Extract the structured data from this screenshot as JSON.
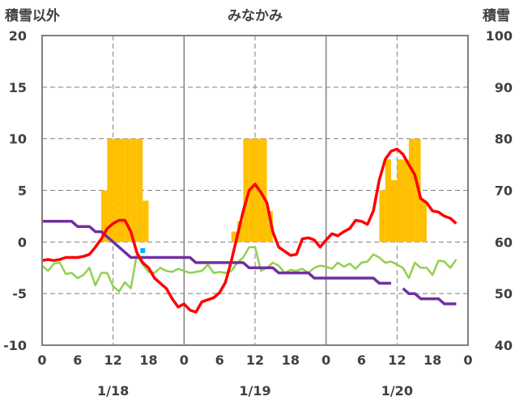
{
  "chart_data": {
    "type": "line",
    "title": "みなかみ",
    "ylabel_left": "積雪以外",
    "ylabel_right": "積雪",
    "ylim_left": [
      -10,
      20
    ],
    "ylim_right": [
      40,
      100
    ],
    "yticks_left": [
      "20",
      "15",
      "10",
      "5",
      "0",
      "-5",
      "-10"
    ],
    "yticks_right": [
      "100",
      "90",
      "80",
      "70",
      "60",
      "50",
      "40"
    ],
    "xticks": [
      "0",
      "6",
      "12",
      "18",
      "0",
      "6",
      "12",
      "18",
      "0",
      "6",
      "12",
      "18",
      "0"
    ],
    "day_labels": [
      "1/18",
      "1/19",
      "1/20"
    ],
    "grid": true,
    "colors": {
      "precip_bars": "#ffc000",
      "temperature": "#ff0000",
      "humidity_proxy": "#92d050",
      "snow_depth": "#7030a0",
      "marker": "#00b0f0"
    },
    "series": [
      {
        "axis": "left",
        "kind": "bar",
        "values": [
          [
            9,
            0
          ],
          [
            10,
            5
          ],
          [
            11,
            10
          ],
          [
            12,
            10
          ],
          [
            13,
            10
          ],
          [
            14,
            10
          ],
          [
            15,
            10
          ],
          [
            16,
            10
          ],
          [
            17,
            4
          ],
          [
            32,
            1
          ],
          [
            33,
            2
          ],
          [
            34,
            10
          ],
          [
            35,
            10
          ],
          [
            36,
            10
          ],
          [
            37,
            10
          ],
          [
            38,
            3
          ],
          [
            57,
            5
          ],
          [
            58,
            8
          ],
          [
            59,
            6
          ],
          [
            60,
            8
          ],
          [
            61,
            8
          ],
          [
            62,
            10
          ],
          [
            63,
            10
          ],
          [
            64,
            4
          ]
        ]
      },
      {
        "axis": "left",
        "kind": "line",
        "values": [
          [
            0,
            -1.8
          ],
          [
            1,
            -1.7
          ],
          [
            2,
            -1.8
          ],
          [
            3,
            -1.7
          ],
          [
            4,
            -1.5
          ],
          [
            5,
            -1.5
          ],
          [
            6,
            -1.5
          ],
          [
            7,
            -1.4
          ],
          [
            8,
            -1.2
          ],
          [
            9,
            -0.5
          ],
          [
            10,
            0.3
          ],
          [
            11,
            1.3
          ],
          [
            12,
            1.8
          ],
          [
            13,
            2.1
          ],
          [
            14,
            2.1
          ],
          [
            15,
            1.0
          ],
          [
            16,
            -1.0
          ],
          [
            17,
            -2.0
          ],
          [
            18,
            -2.5
          ],
          [
            19,
            -3.5
          ],
          [
            20,
            -4.0
          ],
          [
            21,
            -4.5
          ],
          [
            22,
            -5.5
          ],
          [
            23,
            -6.3
          ],
          [
            24,
            -6.0
          ],
          [
            25,
            -6.6
          ],
          [
            26,
            -6.8
          ],
          [
            27,
            -5.8
          ],
          [
            28,
            -5.6
          ],
          [
            29,
            -5.4
          ],
          [
            30,
            -4.9
          ],
          [
            31,
            -3.9
          ],
          [
            32,
            -1.8
          ],
          [
            33,
            0.6
          ],
          [
            34,
            3.0
          ],
          [
            35,
            5.0
          ],
          [
            36,
            5.6
          ],
          [
            37,
            4.8
          ],
          [
            38,
            3.8
          ],
          [
            39,
            1.0
          ],
          [
            40,
            -0.5
          ],
          [
            41,
            -0.9
          ],
          [
            42,
            -1.3
          ],
          [
            43,
            -1.2
          ],
          [
            44,
            0.3
          ],
          [
            45,
            0.4
          ],
          [
            46,
            0.2
          ],
          [
            47,
            -0.5
          ],
          [
            48,
            0.2
          ],
          [
            49,
            0.8
          ],
          [
            50,
            0.6
          ],
          [
            51,
            1.0
          ],
          [
            52,
            1.3
          ],
          [
            53,
            2.1
          ],
          [
            54,
            2.0
          ],
          [
            55,
            1.7
          ],
          [
            56,
            3.0
          ],
          [
            57,
            6.0
          ],
          [
            58,
            8.0
          ],
          [
            59,
            8.8
          ],
          [
            60,
            9.0
          ],
          [
            61,
            8.5
          ],
          [
            62,
            7.5
          ],
          [
            63,
            6.5
          ],
          [
            64,
            4.2
          ],
          [
            65,
            3.8
          ],
          [
            66,
            3.0
          ],
          [
            67,
            2.9
          ],
          [
            68,
            2.5
          ],
          [
            69,
            2.3
          ],
          [
            70,
            1.8
          ]
        ]
      },
      {
        "axis": "left",
        "kind": "line",
        "values": [
          [
            0,
            -2.3
          ],
          [
            1,
            -2.8
          ],
          [
            2,
            -2.1
          ],
          [
            3,
            -2.0
          ],
          [
            4,
            -3.1
          ],
          [
            5,
            -3.0
          ],
          [
            6,
            -3.5
          ],
          [
            7,
            -3.2
          ],
          [
            8,
            -2.5
          ],
          [
            9,
            -4.2
          ],
          [
            10,
            -3.0
          ],
          [
            11,
            -3.0
          ],
          [
            12,
            -4.3
          ],
          [
            13,
            -4.8
          ],
          [
            14,
            -3.9
          ],
          [
            15,
            -4.5
          ],
          [
            16,
            -1.2
          ],
          [
            17,
            -2.2
          ],
          [
            18,
            -2.9
          ],
          [
            19,
            -3.0
          ],
          [
            20,
            -2.5
          ],
          [
            21,
            -2.8
          ],
          [
            22,
            -2.9
          ],
          [
            23,
            -2.6
          ],
          [
            24,
            -2.8
          ],
          [
            25,
            -3.0
          ],
          [
            26,
            -2.9
          ],
          [
            27,
            -2.8
          ],
          [
            28,
            -2.2
          ],
          [
            29,
            -3.0
          ],
          [
            30,
            -2.9
          ],
          [
            31,
            -3.0
          ],
          [
            32,
            -2.8
          ],
          [
            33,
            -2.0
          ],
          [
            34,
            -1.5
          ],
          [
            35,
            -0.5
          ],
          [
            36,
            -0.5
          ],
          [
            37,
            -2.8
          ],
          [
            38,
            -2.5
          ],
          [
            39,
            -2.0
          ],
          [
            40,
            -2.3
          ],
          [
            41,
            -3.0
          ],
          [
            42,
            -2.7
          ],
          [
            43,
            -2.8
          ],
          [
            44,
            -2.6
          ],
          [
            45,
            -3.0
          ],
          [
            46,
            -2.5
          ],
          [
            47,
            -2.3
          ],
          [
            48,
            -2.4
          ],
          [
            49,
            -2.6
          ],
          [
            50,
            -2.0
          ],
          [
            51,
            -2.4
          ],
          [
            52,
            -2.1
          ],
          [
            53,
            -2.6
          ],
          [
            54,
            -2.0
          ],
          [
            55,
            -1.9
          ],
          [
            56,
            -1.2
          ],
          [
            57,
            -1.5
          ],
          [
            58,
            -2.0
          ],
          [
            59,
            -1.9
          ],
          [
            60,
            -2.2
          ],
          [
            61,
            -2.5
          ],
          [
            62,
            -3.5
          ],
          [
            63,
            -2.0
          ],
          [
            64,
            -2.5
          ],
          [
            65,
            -2.5
          ],
          [
            66,
            -3.2
          ],
          [
            67,
            -1.8
          ],
          [
            68,
            -1.9
          ],
          [
            69,
            -2.5
          ],
          [
            70,
            -1.7
          ]
        ]
      },
      {
        "axis": "right",
        "kind": "line",
        "values": [
          [
            0,
            64
          ],
          [
            1,
            64
          ],
          [
            2,
            64
          ],
          [
            3,
            64
          ],
          [
            4,
            64
          ],
          [
            5,
            64
          ],
          [
            6,
            63
          ],
          [
            7,
            63
          ],
          [
            8,
            63
          ],
          [
            9,
            62
          ],
          [
            10,
            62
          ],
          [
            11,
            61
          ],
          [
            12,
            60
          ],
          [
            13,
            59
          ],
          [
            14,
            58
          ],
          [
            15,
            57
          ],
          [
            16,
            57
          ],
          [
            17,
            57
          ],
          [
            18,
            57
          ],
          [
            19,
            57
          ],
          [
            20,
            57
          ],
          [
            21,
            57
          ],
          [
            22,
            57
          ],
          [
            23,
            57
          ],
          [
            24,
            57
          ],
          [
            25,
            57
          ],
          [
            26,
            56
          ],
          [
            27,
            56
          ],
          [
            28,
            56
          ],
          [
            29,
            56
          ],
          [
            30,
            56
          ],
          [
            31,
            56
          ],
          [
            32,
            56
          ],
          [
            33,
            56
          ],
          [
            34,
            56
          ],
          [
            35,
            55
          ],
          [
            36,
            55
          ],
          [
            37,
            55
          ],
          [
            38,
            55
          ],
          [
            39,
            55
          ],
          [
            40,
            54
          ],
          [
            41,
            54
          ],
          [
            42,
            54
          ],
          [
            43,
            54
          ],
          [
            44,
            54
          ],
          [
            45,
            54
          ],
          [
            46,
            53
          ],
          [
            47,
            53
          ],
          [
            48,
            53
          ],
          [
            49,
            53
          ],
          [
            50,
            53
          ],
          [
            51,
            53
          ],
          [
            52,
            53
          ],
          [
            53,
            53
          ],
          [
            54,
            53
          ],
          [
            55,
            53
          ],
          [
            56,
            53
          ],
          [
            57,
            52
          ],
          [
            58,
            52
          ],
          [
            59,
            52
          ],
          [
            60,
            null
          ],
          [
            61,
            51
          ],
          [
            62,
            50
          ],
          [
            63,
            50
          ],
          [
            64,
            49
          ],
          [
            65,
            49
          ],
          [
            66,
            49
          ],
          [
            67,
            49
          ],
          [
            68,
            48
          ],
          [
            69,
            48
          ],
          [
            70,
            48
          ]
        ]
      }
    ]
  }
}
